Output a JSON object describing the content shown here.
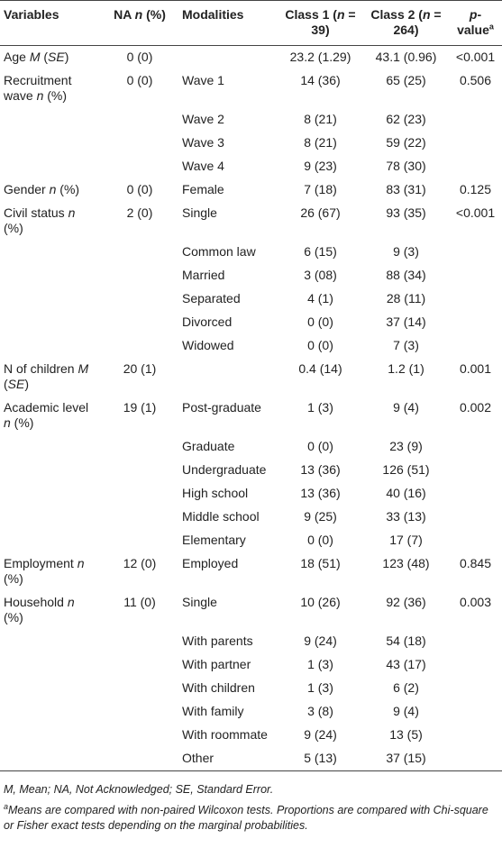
{
  "table": {
    "header": [
      "Variables",
      [
        "NA ",
        {
          "italic": "n"
        },
        " (%)"
      ],
      "Modalities",
      [
        "Class 1 (",
        {
          "italic": "n"
        },
        " = 39)"
      ],
      [
        "Class 2 (",
        {
          "italic": "n"
        },
        " = 264)"
      ],
      [
        {
          "italic": "p"
        },
        "-value",
        {
          "sup": "a"
        }
      ]
    ],
    "rows": [
      [
        [
          "Age ",
          {
            "italic": "M"
          },
          " (",
          {
            "italic": "SE"
          },
          ")"
        ],
        "0 (0)",
        null,
        "23.2 (1.29)",
        "43.1 (0.96)",
        "<0.001"
      ],
      [
        [
          "Recruitment wave ",
          {
            "italic": "n"
          },
          " (%)"
        ],
        "0 (0)",
        "Wave 1",
        "14 (36)",
        "65 (25)",
        "0.506"
      ],
      [
        null,
        null,
        "Wave 2",
        "8 (21)",
        "62 (23)",
        null
      ],
      [
        null,
        null,
        "Wave 3",
        "8 (21)",
        "59 (22)",
        null
      ],
      [
        null,
        null,
        "Wave 4",
        "9 (23)",
        "78 (30)",
        null
      ],
      [
        [
          "Gender ",
          {
            "italic": "n"
          },
          " (%)"
        ],
        "0 (0)",
        "Female",
        "7 (18)",
        "83 (31)",
        "0.125"
      ],
      [
        [
          "Civil status ",
          {
            "italic": "n"
          },
          " (%)"
        ],
        "2 (0)",
        "Single",
        "26 (67)",
        "93 (35)",
        "<0.001"
      ],
      [
        null,
        null,
        "Common law",
        "6 (15)",
        "9 (3)",
        null
      ],
      [
        null,
        null,
        "Married",
        "3 (08)",
        "88 (34)",
        null
      ],
      [
        null,
        null,
        "Separated",
        "4 (1)",
        "28 (11)",
        null
      ],
      [
        null,
        null,
        "Divorced",
        "0 (0)",
        "37 (14)",
        null
      ],
      [
        null,
        null,
        "Widowed",
        "0 (0)",
        "7 (3)",
        null
      ],
      [
        [
          "N of children ",
          {
            "italic": "M"
          },
          " (",
          {
            "italic": "SE"
          },
          ")"
        ],
        "20 (1)",
        null,
        "0.4 (14)",
        "1.2 (1)",
        "0.001"
      ],
      [
        [
          "Academic level ",
          {
            "italic": "n"
          },
          " (%)"
        ],
        "19 (1)",
        "Post-graduate",
        "1 (3)",
        "9 (4)",
        "0.002"
      ],
      [
        null,
        null,
        "Graduate",
        "0 (0)",
        "23 (9)",
        null
      ],
      [
        null,
        null,
        "Undergraduate",
        "13 (36)",
        "126 (51)",
        null
      ],
      [
        null,
        null,
        "High school",
        "13 (36)",
        "40 (16)",
        null
      ],
      [
        null,
        null,
        "Middle school",
        "9 (25)",
        "33 (13)",
        null
      ],
      [
        null,
        null,
        "Elementary",
        "0 (0)",
        "17 (7)",
        null
      ],
      [
        [
          "Employment ",
          {
            "italic": "n"
          },
          " (%)"
        ],
        "12 (0)",
        "Employed",
        "18 (51)",
        "123 (48)",
        "0.845"
      ],
      [
        [
          "Household ",
          {
            "italic": "n"
          },
          " (%)"
        ],
        "11 (0)",
        "Single",
        "10 (26)",
        "92 (36)",
        "0.003"
      ],
      [
        null,
        null,
        "With parents",
        "9 (24)",
        "54 (18)",
        null
      ],
      [
        null,
        null,
        "With partner",
        "1 (3)",
        "43 (17)",
        null
      ],
      [
        null,
        null,
        "With children",
        "1 (3)",
        "6 (2)",
        null
      ],
      [
        null,
        null,
        "With family",
        "3 (8)",
        "9 (4)",
        null
      ],
      [
        null,
        null,
        "With roommate",
        "9 (24)",
        "13 (5)",
        null
      ],
      [
        null,
        null,
        "Other",
        "5 (13)",
        "37 (15)",
        null
      ]
    ],
    "notes": [
      [
        "M, Mean; NA, Not Acknowledged; SE, Standard Error."
      ],
      [
        {
          "sup": "a"
        },
        "Means are compared with non-paired Wilcoxon tests. Proportions are compared with Chi-square or Fisher exact tests depending on the marginal probabilities."
      ]
    ]
  }
}
